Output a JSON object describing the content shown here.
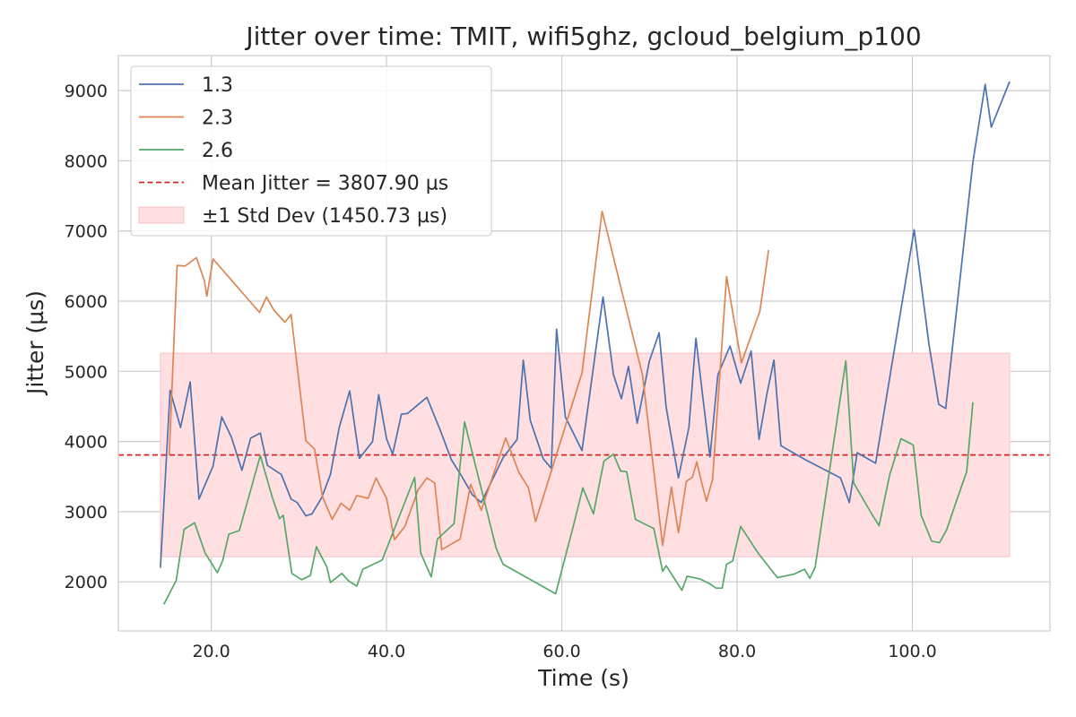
{
  "chart_data": {
    "type": "line",
    "title": "Jitter over time: TMIT, wifi5ghz, gcloud_belgium_p100",
    "xlabel": "Time (s)",
    "ylabel": "Jitter (µs)",
    "xlim": [
      9.4,
      115.7
    ],
    "ylim": [
      1300,
      9500
    ],
    "xticks": [
      20.0,
      40.0,
      60.0,
      80.0,
      100.0
    ],
    "xtick_labels": [
      "20.0",
      "40.0",
      "60.0",
      "80.0",
      "100.0"
    ],
    "yticks": [
      2000,
      3000,
      4000,
      5000,
      6000,
      7000,
      8000,
      9000
    ],
    "ytick_labels": [
      "2000",
      "3000",
      "4000",
      "5000",
      "6000",
      "7000",
      "8000",
      "9000"
    ],
    "grid": true,
    "legend_position": "top-left",
    "mean": {
      "label": "Mean Jitter = 3807.90 µs",
      "value": 3807.9,
      "color": "#d62728"
    },
    "std_band": {
      "label": "±1 Std Dev (1450.73 µs)",
      "low": 2357.17,
      "high": 5258.63,
      "x_range": [
        14.2,
        111.1
      ],
      "color": "#ffdfe1"
    },
    "series": [
      {
        "name": "1.3",
        "color": "#4c72b0",
        "points": [
          [
            14.2,
            2200
          ],
          [
            15.3,
            4730
          ],
          [
            16.5,
            4200
          ],
          [
            17.6,
            4850
          ],
          [
            18.6,
            3180
          ],
          [
            20.2,
            3650
          ],
          [
            21.2,
            4350
          ],
          [
            22.3,
            4060
          ],
          [
            23.5,
            3590
          ],
          [
            24.5,
            4050
          ],
          [
            25.6,
            4120
          ],
          [
            26.4,
            3660
          ],
          [
            28.0,
            3530
          ],
          [
            29.1,
            3180
          ],
          [
            29.8,
            3130
          ],
          [
            30.8,
            2940
          ],
          [
            31.5,
            2970
          ],
          [
            32.6,
            3200
          ],
          [
            33.6,
            3530
          ],
          [
            34.6,
            4200
          ],
          [
            35.8,
            4720
          ],
          [
            36.9,
            3760
          ],
          [
            38.4,
            4000
          ],
          [
            39.1,
            4670
          ],
          [
            40.0,
            4040
          ],
          [
            40.7,
            3820
          ],
          [
            41.7,
            4390
          ],
          [
            42.4,
            4400
          ],
          [
            44.6,
            4630
          ],
          [
            46.1,
            4170
          ],
          [
            47.4,
            3740
          ],
          [
            48.5,
            3520
          ],
          [
            49.8,
            3240
          ],
          [
            50.8,
            3130
          ],
          [
            53.3,
            3770
          ],
          [
            54.9,
            4030
          ],
          [
            55.6,
            5160
          ],
          [
            56.4,
            4300
          ],
          [
            57.9,
            3750
          ],
          [
            58.8,
            3620
          ],
          [
            59.4,
            5600
          ],
          [
            60.4,
            4350
          ],
          [
            62.3,
            3870
          ],
          [
            64.7,
            6060
          ],
          [
            65.9,
            4950
          ],
          [
            66.8,
            4610
          ],
          [
            67.6,
            5070
          ],
          [
            68.6,
            4260
          ],
          [
            70.0,
            5150
          ],
          [
            71.1,
            5550
          ],
          [
            71.9,
            4490
          ],
          [
            73.3,
            3480
          ],
          [
            74.5,
            4200
          ],
          [
            75.3,
            5470
          ],
          [
            76.0,
            4720
          ],
          [
            76.9,
            3780
          ],
          [
            77.8,
            4950
          ],
          [
            79.2,
            5360
          ],
          [
            80.4,
            4830
          ],
          [
            81.6,
            5290
          ],
          [
            82.5,
            4030
          ],
          [
            83.4,
            4680
          ],
          [
            84.2,
            5160
          ],
          [
            85.0,
            3940
          ],
          [
            87.8,
            3740
          ],
          [
            91.8,
            3480
          ],
          [
            92.8,
            3130
          ],
          [
            93.7,
            3840
          ],
          [
            95.8,
            3690
          ],
          [
            100.2,
            7020
          ],
          [
            101.9,
            5380
          ],
          [
            103.0,
            4530
          ],
          [
            103.8,
            4470
          ],
          [
            106.9,
            7980
          ],
          [
            108.3,
            9090
          ],
          [
            109.0,
            8480
          ],
          [
            111.1,
            9130
          ]
        ]
      },
      {
        "name": "2.3",
        "color": "#dd8452",
        "points": [
          [
            15.2,
            3800
          ],
          [
            16.1,
            6510
          ],
          [
            17.0,
            6500
          ],
          [
            18.3,
            6620
          ],
          [
            19.2,
            6300
          ],
          [
            19.5,
            6070
          ],
          [
            20.2,
            6600
          ],
          [
            23.9,
            6070
          ],
          [
            25.5,
            5840
          ],
          [
            26.3,
            6060
          ],
          [
            27.1,
            5880
          ],
          [
            28.4,
            5700
          ],
          [
            29.1,
            5810
          ],
          [
            30.8,
            4010
          ],
          [
            31.8,
            3890
          ],
          [
            32.7,
            3210
          ],
          [
            33.8,
            2890
          ],
          [
            34.8,
            3120
          ],
          [
            35.8,
            3020
          ],
          [
            36.6,
            3230
          ],
          [
            37.9,
            3190
          ],
          [
            38.8,
            3480
          ],
          [
            40.0,
            3190
          ],
          [
            40.9,
            2600
          ],
          [
            42.1,
            2790
          ],
          [
            43.6,
            3310
          ],
          [
            44.6,
            3480
          ],
          [
            45.5,
            3410
          ],
          [
            46.3,
            2460
          ],
          [
            48.4,
            2610
          ],
          [
            49.6,
            3390
          ],
          [
            50.8,
            3020
          ],
          [
            53.6,
            4050
          ],
          [
            55.1,
            3560
          ],
          [
            56.2,
            3340
          ],
          [
            57.0,
            2860
          ],
          [
            62.3,
            4980
          ],
          [
            64.6,
            7280
          ],
          [
            69.2,
            4950
          ],
          [
            71.5,
            2520
          ],
          [
            72.5,
            3350
          ],
          [
            73.3,
            2700
          ],
          [
            74.2,
            3430
          ],
          [
            74.9,
            3490
          ],
          [
            75.4,
            3710
          ],
          [
            75.9,
            3440
          ],
          [
            76.5,
            3150
          ],
          [
            77.2,
            3460
          ],
          [
            78.8,
            6350
          ],
          [
            80.5,
            5120
          ],
          [
            82.6,
            5860
          ],
          [
            83.6,
            6730
          ]
        ]
      },
      {
        "name": "2.6",
        "color": "#55a868",
        "points": [
          [
            14.6,
            1680
          ],
          [
            16.0,
            2020
          ],
          [
            16.9,
            2750
          ],
          [
            18.1,
            2840
          ],
          [
            19.3,
            2410
          ],
          [
            20.7,
            2130
          ],
          [
            21.3,
            2300
          ],
          [
            22.0,
            2680
          ],
          [
            23.2,
            2730
          ],
          [
            25.6,
            3800
          ],
          [
            27.0,
            3190
          ],
          [
            27.8,
            2900
          ],
          [
            28.2,
            2950
          ],
          [
            29.2,
            2120
          ],
          [
            30.3,
            2030
          ],
          [
            31.3,
            2090
          ],
          [
            32.0,
            2500
          ],
          [
            33.2,
            2210
          ],
          [
            33.6,
            1990
          ],
          [
            34.9,
            2120
          ],
          [
            35.7,
            2010
          ],
          [
            36.6,
            1940
          ],
          [
            37.3,
            2180
          ],
          [
            39.5,
            2310
          ],
          [
            43.2,
            3490
          ],
          [
            43.9,
            2410
          ],
          [
            45.1,
            2070
          ],
          [
            45.8,
            2610
          ],
          [
            47.7,
            2830
          ],
          [
            48.9,
            4280
          ],
          [
            51.1,
            3180
          ],
          [
            52.5,
            2480
          ],
          [
            53.3,
            2250
          ],
          [
            59.3,
            1830
          ],
          [
            61.3,
            2790
          ],
          [
            62.4,
            3340
          ],
          [
            63.6,
            2970
          ],
          [
            64.8,
            3720
          ],
          [
            65.9,
            3820
          ],
          [
            66.7,
            3580
          ],
          [
            67.4,
            3570
          ],
          [
            68.4,
            2890
          ],
          [
            70.5,
            2760
          ],
          [
            71.5,
            2150
          ],
          [
            71.9,
            2230
          ],
          [
            73.7,
            1880
          ],
          [
            74.3,
            2080
          ],
          [
            75.8,
            2040
          ],
          [
            76.9,
            1970
          ],
          [
            77.6,
            1910
          ],
          [
            78.3,
            1910
          ],
          [
            78.8,
            2250
          ],
          [
            79.5,
            2300
          ],
          [
            80.4,
            2790
          ],
          [
            82.4,
            2410
          ],
          [
            84.6,
            2060
          ],
          [
            86.5,
            2110
          ],
          [
            87.7,
            2180
          ],
          [
            88.3,
            2050
          ],
          [
            88.9,
            2210
          ],
          [
            92.4,
            5150
          ],
          [
            93.3,
            3410
          ],
          [
            95.3,
            2980
          ],
          [
            96.2,
            2800
          ],
          [
            97.4,
            3520
          ],
          [
            98.7,
            4040
          ],
          [
            100.1,
            3950
          ],
          [
            101.0,
            2950
          ],
          [
            102.2,
            2580
          ],
          [
            103.1,
            2560
          ],
          [
            103.9,
            2740
          ],
          [
            105.1,
            3180
          ],
          [
            106.2,
            3570
          ],
          [
            106.9,
            4560
          ]
        ]
      }
    ]
  }
}
